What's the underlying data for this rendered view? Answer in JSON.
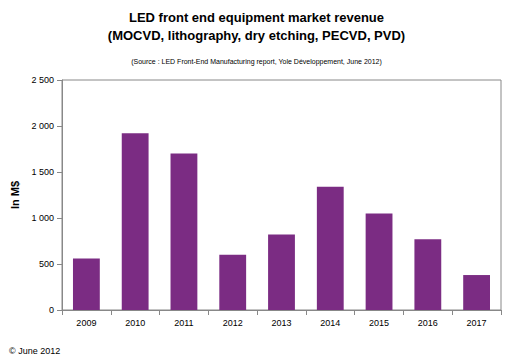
{
  "chart_data": {
    "type": "bar",
    "title": "LED front end equipment market revenue",
    "subtitle": "(MOCVD, lithography, dry etching, PECVD, PVD)",
    "annotations": [
      "(Source : LED Front-End Manufacturing report, Yole Développement, June 2012)",
      "© June 2012"
    ],
    "ylabel": "In M$",
    "categories": [
      "2009",
      "2010",
      "2011",
      "2012",
      "2013",
      "2014",
      "2015",
      "2016",
      "2017"
    ],
    "values": [
      560,
      1920,
      1700,
      600,
      820,
      1340,
      1050,
      770,
      380
    ],
    "color": "#7b2c83",
    "ylim": [
      0,
      2500
    ],
    "yticks": [
      0,
      500,
      {
        "value": 1000,
        "label": "1 000"
      },
      {
        "value": 1500,
        "label": "1 500"
      },
      {
        "value": 2000,
        "label": "2 000"
      },
      {
        "value": 2500,
        "label": "2 500"
      }
    ],
    "grid": false
  }
}
